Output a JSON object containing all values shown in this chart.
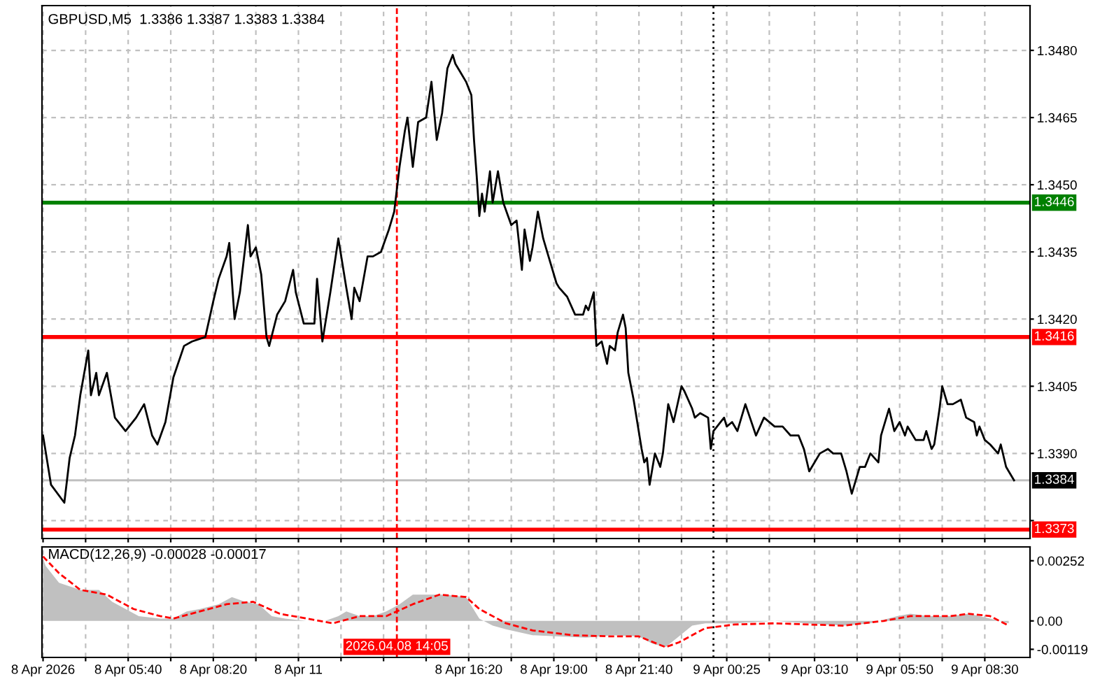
{
  "chart_data": [
    {
      "type": "line",
      "title": "GBPUSD,M5  1.3386 1.3387 1.3383 1.3384",
      "x": [
        "2026-04-08T03:00",
        "2026-04-08T03:15",
        "2026-04-08T03:40",
        "2026-04-08T03:50",
        "2026-04-08T04:00",
        "2026-04-08T04:10",
        "2026-04-08T04:25",
        "2026-04-08T04:30",
        "2026-04-08T04:40",
        "2026-04-08T04:45",
        "2026-04-08T05:00",
        "2026-04-08T05:15",
        "2026-04-08T05:35",
        "2026-04-08T05:55",
        "2026-04-08T06:10",
        "2026-04-08T06:25",
        "2026-04-08T06:35",
        "2026-04-08T06:50",
        "2026-04-08T07:05",
        "2026-04-08T07:25",
        "2026-04-08T07:40",
        "2026-04-08T08:05",
        "2026-04-08T08:20",
        "2026-04-08T08:30",
        "2026-04-08T08:45",
        "2026-04-08T08:50",
        "2026-04-08T09:00",
        "2026-04-08T09:10",
        "2026-04-08T09:25",
        "2026-04-08T09:30",
        "2026-04-08T09:40",
        "2026-04-08T09:50",
        "2026-04-08T10:00",
        "2026-04-08T10:05",
        "2026-04-08T10:20",
        "2026-04-08T10:35",
        "2026-04-08T10:50",
        "2026-04-08T10:55",
        "2026-04-08T11:10",
        "2026-04-08T11:30",
        "2026-04-08T11:35",
        "2026-04-08T11:45",
        "2026-04-08T12:00",
        "2026-04-08T12:15",
        "2026-04-08T12:30",
        "2026-04-08T12:40",
        "2026-04-08T12:45",
        "2026-04-08T12:55",
        "2026-04-08T13:10",
        "2026-04-08T13:20",
        "2026-04-08T13:35",
        "2026-04-08T13:50",
        "2026-04-08T14:00",
        "2026-04-08T14:10",
        "2026-04-08T14:20",
        "2026-04-08T14:25",
        "2026-04-08T14:35",
        "2026-04-08T14:45",
        "2026-04-08T15:00",
        "2026-04-08T15:10",
        "2026-04-08T15:20",
        "2026-04-08T15:30",
        "2026-04-08T15:40",
        "2026-04-08T15:50",
        "2026-04-08T15:55",
        "2026-04-08T16:05",
        "2026-04-08T16:15",
        "2026-04-08T16:25",
        "2026-04-08T16:30",
        "2026-04-08T16:35",
        "2026-04-08T16:40",
        "2026-04-08T16:45",
        "2026-04-08T16:50",
        "2026-04-08T17:00",
        "2026-04-08T17:05",
        "2026-04-08T17:15",
        "2026-04-08T17:25",
        "2026-04-08T17:40",
        "2026-04-08T17:50",
        "2026-04-08T18:00",
        "2026-04-08T18:05",
        "2026-04-08T18:15",
        "2026-04-08T18:20",
        "2026-04-08T18:30",
        "2026-04-08T18:40",
        "2026-04-08T18:50",
        "2026-04-08T19:05",
        "2026-04-08T19:10",
        "2026-04-08T19:25",
        "2026-04-08T19:40",
        "2026-04-08T19:55",
        "2026-04-08T20:00",
        "2026-04-08T20:05",
        "2026-04-08T20:15",
        "2026-04-08T20:20",
        "2026-04-08T20:30",
        "2026-04-08T20:40",
        "2026-04-08T20:45",
        "2026-04-08T20:55",
        "2026-04-08T21:00",
        "2026-04-08T21:10",
        "2026-04-08T21:15",
        "2026-04-08T21:20",
        "2026-04-08T21:30",
        "2026-04-08T21:45",
        "2026-04-08T21:50",
        "2026-04-08T21:55",
        "2026-04-08T22:00",
        "2026-04-08T22:10",
        "2026-04-08T22:20",
        "2026-04-08T22:25",
        "2026-04-08T22:35",
        "2026-04-08T22:45",
        "2026-04-08T23:00",
        "2026-04-08T23:05",
        "2026-04-08T23:20",
        "2026-04-08T23:25",
        "2026-04-08T23:35",
        "2026-04-08T23:50",
        "2026-04-08T23:55",
        "2026-04-09T00:00",
        "2026-04-09T00:20",
        "2026-04-09T00:25",
        "2026-04-09T00:35",
        "2026-04-09T00:45",
        "2026-04-09T01:00",
        "2026-04-09T01:20",
        "2026-04-09T01:35",
        "2026-04-09T01:55",
        "2026-04-09T02:10",
        "2026-04-09T02:25",
        "2026-04-09T02:40",
        "2026-04-09T02:50",
        "2026-04-09T03:00",
        "2026-04-09T03:20",
        "2026-04-09T03:35",
        "2026-04-09T03:45",
        "2026-04-09T04:00",
        "2026-04-09T04:10",
        "2026-04-09T04:20",
        "2026-04-09T04:35",
        "2026-04-09T04:45",
        "2026-04-09T04:55",
        "2026-04-09T05:10",
        "2026-04-09T05:15",
        "2026-04-09T05:30",
        "2026-04-09T05:40",
        "2026-04-09T05:50",
        "2026-04-09T06:00",
        "2026-04-09T06:05",
        "2026-04-09T06:20",
        "2026-04-09T06:35",
        "2026-04-09T06:40",
        "2026-04-09T06:50",
        "2026-04-09T06:55",
        "2026-04-09T07:05",
        "2026-04-09T07:10",
        "2026-04-09T07:20",
        "2026-04-09T07:30",
        "2026-04-09T07:45",
        "2026-04-09T07:55",
        "2026-04-09T08:10",
        "2026-04-09T08:15",
        "2026-04-09T08:20",
        "2026-04-09T08:30",
        "2026-04-09T08:40",
        "2026-04-09T08:55",
        "2026-04-09T09:00",
        "2026-04-09T09:10",
        "2026-04-09T09:15",
        "2026-04-09T09:25"
      ],
      "series": [
        {
          "color": "#000000",
          "values": [
            1.3394,
            1.3383,
            1.3379,
            1.3389,
            1.3394,
            1.3403,
            1.3413,
            1.3403,
            1.3408,
            1.3403,
            1.3408,
            1.3398,
            1.3395,
            1.3398,
            1.3401,
            1.3394,
            1.3392,
            1.3397,
            1.3407,
            1.3414,
            1.3415,
            1.3416,
            1.3424,
            1.3429,
            1.3434,
            1.3437,
            1.342,
            1.3426,
            1.3441,
            1.3434,
            1.3436,
            1.343,
            1.3416,
            1.3414,
            1.3421,
            1.3424,
            1.3431,
            1.3426,
            1.3419,
            1.3419,
            1.3429,
            1.3415,
            1.3426,
            1.3438,
            1.3427,
            1.342,
            1.3427,
            1.3424,
            1.3434,
            1.3434,
            1.3435,
            1.344,
            1.3444,
            1.3454,
            1.3462,
            1.3465,
            1.3454,
            1.3464,
            1.3465,
            1.3473,
            1.346,
            1.3466,
            1.3476,
            1.3479,
            1.3477,
            1.3475,
            1.3473,
            1.347,
            1.346,
            1.3452,
            1.3443,
            1.3448,
            1.3444,
            1.3453,
            1.3446,
            1.3453,
            1.3446,
            1.3441,
            1.3442,
            1.3431,
            1.344,
            1.3433,
            1.3436,
            1.3444,
            1.3438,
            1.3434,
            1.3428,
            1.3427,
            1.3425,
            1.3421,
            1.3421,
            1.3423,
            1.3422,
            1.3426,
            1.3414,
            1.3415,
            1.341,
            1.3414,
            1.3413,
            1.3417,
            1.3421,
            1.3418,
            1.3408,
            1.3402,
            1.3391,
            1.3388,
            1.3389,
            1.3383,
            1.339,
            1.3387,
            1.339,
            1.3401,
            1.3397,
            1.3405,
            1.3404,
            1.34,
            1.3398,
            1.3399,
            1.3398,
            1.3391,
            1.3395,
            1.3398,
            1.3396,
            1.3397,
            1.3395,
            1.3401,
            1.3394,
            1.3398,
            1.3396,
            1.3396,
            1.3394,
            1.3394,
            1.3391,
            1.3386,
            1.339,
            1.3391,
            1.339,
            1.339,
            1.3386,
            1.3381,
            1.3387,
            1.3387,
            1.339,
            1.3388,
            1.3394,
            1.34,
            1.3395,
            1.3397,
            1.3394,
            1.3396,
            1.3393,
            1.3393,
            1.3395,
            1.3391,
            1.3392,
            1.34,
            1.3405,
            1.3401,
            1.3401,
            1.3402,
            1.3398,
            1.3397,
            1.3394,
            1.3396,
            1.3393,
            1.3392,
            1.339,
            1.3392,
            1.3387,
            1.3386,
            1.3384
          ]
        }
      ],
      "xlim": [
        "2026-04-08T02:58",
        "2026-04-09T09:55"
      ],
      "ylim": [
        1.3371,
        1.349
      ],
      "xticks": [
        {
          "value": "2026-04-08T03:00",
          "label": null
        },
        {
          "value": "2026-04-08T04:20",
          "label": null
        },
        {
          "value": "2026-04-08T05:40",
          "label": null
        },
        {
          "value": "2026-04-08T07:00",
          "label": null
        },
        {
          "value": "2026-04-08T08:20",
          "label": null
        },
        {
          "value": "2026-04-08T09:40",
          "label": null
        },
        {
          "value": "2026-04-08T11:00",
          "label": null
        },
        {
          "value": "2026-04-08T12:20",
          "label": null
        },
        {
          "value": "2026-04-08T13:40",
          "label": null
        },
        {
          "value": "2026-04-08T15:00",
          "label": null
        },
        {
          "value": "2026-04-08T16:20",
          "label": null
        },
        {
          "value": "2026-04-08T17:40",
          "label": null
        },
        {
          "value": "2026-04-08T19:00",
          "label": null
        },
        {
          "value": "2026-04-08T20:20",
          "label": null
        },
        {
          "value": "2026-04-08T21:40",
          "label": null
        },
        {
          "value": "2026-04-08T23:00",
          "label": null
        },
        {
          "value": "2026-04-09T00:25",
          "label": null
        },
        {
          "value": "2026-04-09T01:45",
          "label": null
        },
        {
          "value": "2026-04-09T03:10",
          "label": null
        },
        {
          "value": "2026-04-09T04:30",
          "label": null
        },
        {
          "value": "2026-04-09T05:50",
          "label": null
        },
        {
          "value": "2026-04-09T07:10",
          "label": null
        },
        {
          "value": "2026-04-09T08:30",
          "label": null
        }
      ],
      "yticks": [
        {
          "value": 1.3375,
          "label": null
        },
        {
          "value": 1.339,
          "label": "1.3390"
        },
        {
          "value": 1.3405,
          "label": "1.3405"
        },
        {
          "value": 1.342,
          "label": "1.3420"
        },
        {
          "value": 1.3435,
          "label": "1.3435"
        },
        {
          "value": 1.345,
          "label": "1.3450"
        },
        {
          "value": 1.3465,
          "label": "1.3465"
        },
        {
          "value": 1.348,
          "label": "1.3480"
        }
      ],
      "grid": true,
      "tick_labels": "y",
      "ref_lines": [
        {
          "axis": "y",
          "value": 1.3446,
          "label": "1.3446",
          "color": "#008000"
        },
        {
          "axis": "y",
          "value": 1.3416,
          "label": "1.3416",
          "color": "#ff0000"
        },
        {
          "axis": "y",
          "value": 1.3384,
          "label": "1.3384",
          "color": "#c0c0c0"
        },
        {
          "axis": "y",
          "value": 1.3373,
          "label": "1.3373",
          "color": "#ff0000"
        },
        {
          "axis": "x",
          "value": "2026-04-08T14:05",
          "label": null,
          "color": "#ff0000",
          "line_style": "dashed"
        },
        {
          "axis": "x",
          "value": "2026-04-09T00:00",
          "label": null,
          "color": "#000000",
          "line_style": "dotted"
        }
      ]
    },
    {
      "type": "area",
      "title": "MACD(12,26,9) -0.00028 -0.00017",
      "series": [
        {
          "type": "area",
          "color": "#c0c0c0",
          "x": [
            "2026-04-08T03:00",
            "2026-04-08T03:05",
            "2026-04-08T03:30",
            "2026-04-08T04:10",
            "2026-04-08T04:45",
            "2026-04-08T05:10",
            "2026-04-08T05:35",
            "2026-04-08T06:00",
            "2026-04-08T06:40",
            "2026-04-08T07:05",
            "2026-04-08T07:30",
            "2026-04-08T07:55",
            "2026-04-08T08:30",
            "2026-04-08T08:55",
            "2026-04-08T09:20",
            "2026-04-08T09:45",
            "2026-04-08T10:10",
            "2026-04-08T10:35",
            "2026-04-08T11:15",
            "2026-04-08T11:50",
            "2026-04-08T12:15",
            "2026-04-08T12:30",
            "2026-04-08T12:55",
            "2026-04-08T13:20",
            "2026-04-08T13:45",
            "2026-04-08T14:10",
            "2026-04-08T14:35",
            "2026-04-08T15:00",
            "2026-04-08T15:35",
            "2026-04-08T16:15",
            "2026-04-08T16:40",
            "2026-04-08T17:05",
            "2026-04-08T17:30",
            "2026-04-08T18:20",
            "2026-04-08T19:10",
            "2026-04-08T20:00",
            "2026-04-08T20:50",
            "2026-04-08T21:40",
            "2026-04-08T22:05",
            "2026-04-08T22:30",
            "2026-04-08T22:55",
            "2026-04-08T23:20",
            "2026-04-08T23:45",
            "2026-04-09T00:40",
            "2026-04-09T01:55",
            "2026-04-09T02:55",
            "2026-04-09T04:05",
            "2026-04-09T04:55",
            "2026-04-09T05:45",
            "2026-04-09T06:10",
            "2026-04-09T06:45",
            "2026-04-09T07:25",
            "2026-04-09T08:00",
            "2026-04-09T08:40",
            "2026-04-09T09:15"
          ],
          "values": [
            0.0026,
            0.0023,
            0.0016,
            0.0013,
            0.0013,
            0.0008,
            0.0005,
            0.0002,
            0.0001,
            0.0001,
            0.0004,
            0.0005,
            0.0007,
            0.001,
            0.0008,
            0.0007,
            0.0002,
            0.0001,
            0,
            0,
            0.0002,
            0.0004,
            0.0002,
            0.0002,
            0.0004,
            0.0007,
            0.0011,
            0.0011,
            0.0011,
            0.001,
            0.0001,
            -0.0002,
            -0.00035,
            -0.0006,
            -0.00065,
            -0.0007,
            -0.0006,
            -0.00065,
            -0.00095,
            -0.0011,
            -0.00065,
            -0.0002,
            -0.0001,
            -0.0001,
            0,
            -0.0001,
            -0.0002,
            -0.0001,
            0.0002,
            0.0003,
            0.0002,
            0.0002,
            0.0003,
            0.0001,
            -0.0001
          ]
        },
        {
          "type": "line",
          "color": "#ff0000",
          "line_style": "dashed",
          "x": [
            "2026-04-08T03:00",
            "2026-04-08T03:30",
            "2026-04-08T04:10",
            "2026-04-08T05:00",
            "2026-04-08T05:50",
            "2026-04-08T06:40",
            "2026-04-08T07:05",
            "2026-04-08T07:55",
            "2026-04-08T08:45",
            "2026-04-08T09:35",
            "2026-04-08T10:25",
            "2026-04-08T11:15",
            "2026-04-08T12:05",
            "2026-04-08T12:55",
            "2026-04-08T13:45",
            "2026-04-08T14:35",
            "2026-04-08T15:25",
            "2026-04-08T16:15",
            "2026-04-08T16:40",
            "2026-04-08T17:30",
            "2026-04-08T18:20",
            "2026-04-08T19:35",
            "2026-04-08T20:50",
            "2026-04-08T21:40",
            "2026-04-08T22:30",
            "2026-04-08T22:55",
            "2026-04-08T23:45",
            "2026-04-09T00:40",
            "2026-04-09T01:55",
            "2026-04-09T04:05",
            "2026-04-09T05:20",
            "2026-04-09T06:10",
            "2026-04-09T07:25",
            "2026-04-09T08:00",
            "2026-04-09T08:40",
            "2026-04-09T09:15"
          ],
          "values": [
            0.0027,
            0.002,
            0.0013,
            0.0011,
            0.0005,
            0.0002,
            0.0001,
            0.0004,
            0.0007,
            0.0008,
            0.0003,
            0.0001,
            -0.0001,
            0.0002,
            0.0002,
            0.0007,
            0.0011,
            0.001,
            0.0005,
            -0.0001,
            -0.0004,
            -0.0006,
            -0.00065,
            -0.00065,
            -0.0011,
            -0.0009,
            -0.0003,
            -0.00015,
            -0.0001,
            -0.0002,
            0,
            0.0002,
            0.0002,
            0.0003,
            0.0002,
            -0.0002
          ]
        }
      ],
      "xlim": [
        "2026-04-08T02:58",
        "2026-04-09T09:55"
      ],
      "ylim": [
        -0.00153,
        0.0031
      ],
      "xticks": [
        {
          "value": "2026-04-08T03:00",
          "label": "8 Apr 2026"
        },
        {
          "value": "2026-04-08T04:20",
          "label": null
        },
        {
          "value": "2026-04-08T05:40",
          "label": "8 Apr 05:40"
        },
        {
          "value": "2026-04-08T07:00",
          "label": null
        },
        {
          "value": "2026-04-08T08:20",
          "label": "8 Apr 08:20"
        },
        {
          "value": "2026-04-08T09:40",
          "label": null
        },
        {
          "value": "2026-04-08T11:00",
          "label": "8 Apr 11"
        },
        {
          "value": "2026-04-08T12:20",
          "label": null
        },
        {
          "value": "2026-04-08T13:40",
          "label": null
        },
        {
          "value": "2026-04-08T15:00",
          "label": null
        },
        {
          "value": "2026-04-08T16:20",
          "label": "8 Apr 16:20"
        },
        {
          "value": "2026-04-08T17:40",
          "label": null
        },
        {
          "value": "2026-04-08T19:00",
          "label": "8 Apr 19:00"
        },
        {
          "value": "2026-04-08T20:20",
          "label": null
        },
        {
          "value": "2026-04-08T21:40",
          "label": "8 Apr 21:40"
        },
        {
          "value": "2026-04-08T23:00",
          "label": null
        },
        {
          "value": "2026-04-09T00:25",
          "label": "9 Apr 00:25"
        },
        {
          "value": "2026-04-09T01:45",
          "label": null
        },
        {
          "value": "2026-04-09T03:10",
          "label": "9 Apr 03:10"
        },
        {
          "value": "2026-04-09T04:30",
          "label": null
        },
        {
          "value": "2026-04-09T05:50",
          "label": "9 Apr 05:50"
        },
        {
          "value": "2026-04-09T07:10",
          "label": null
        },
        {
          "value": "2026-04-09T08:30",
          "label": "9 Apr 08:30"
        }
      ],
      "yticks": [
        {
          "value": -0.00119,
          "label": "-0.00119"
        },
        {
          "value": 0,
          "label": "0.00"
        },
        {
          "value": 0.00252,
          "label": "0.00252"
        }
      ],
      "grid": "x",
      "ref_lines": [
        {
          "axis": "x",
          "value": "2026-04-08T14:05",
          "label": "2026.04.08 14:05",
          "color": "#ff0000",
          "line_style": "dashed"
        },
        {
          "axis": "x",
          "value": "2026-04-09T00:00",
          "label": null,
          "color": "#000000",
          "line_style": "dotted"
        }
      ]
    }
  ]
}
